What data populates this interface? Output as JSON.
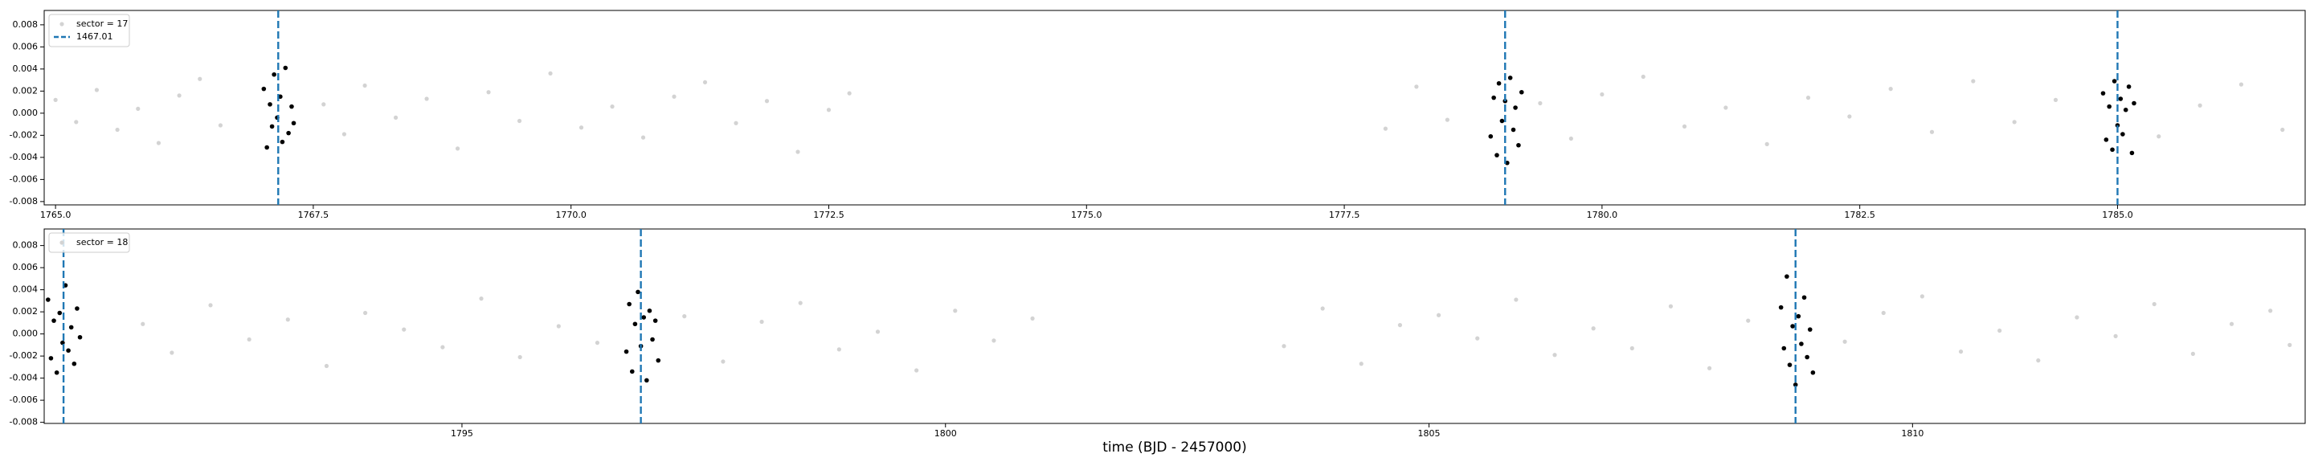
{
  "chart_data": [
    {
      "type": "scatter",
      "xlim": [
        1764.89,
        1786.82
      ],
      "ylim": [
        -0.0083,
        0.0093
      ],
      "xticks": [
        {
          "value": 1765,
          "label": "1765.0"
        },
        1767.5,
        {
          "value": 1770,
          "label": "1770.0"
        },
        1772.5,
        {
          "value": 1775,
          "label": "1775.0"
        },
        1777.5,
        {
          "value": 1780,
          "label": "1780.0"
        },
        1782.5,
        {
          "value": 1785,
          "label": "1785.0"
        }
      ],
      "yticks": [
        -0.008,
        -0.006,
        -0.004,
        -0.002,
        {
          "value": 0,
          "label": "0.000"
        },
        0.002,
        0.004,
        0.006,
        0.008
      ],
      "legend": "upper left",
      "series": [
        {
          "name": "sector = 17",
          "color": "#d3d3d3",
          "x": [
            1765.0,
            1765.2,
            1765.4,
            1765.6,
            1765.8,
            1766.0,
            1766.2,
            1766.4,
            1766.6,
            1767.6,
            1767.8,
            1768.0,
            1768.3,
            1768.6,
            1768.9,
            1769.2,
            1769.5,
            1769.8,
            1770.1,
            1770.4,
            1770.7,
            1771.0,
            1771.3,
            1771.6,
            1771.9,
            1772.2,
            1772.5,
            1772.7,
            1777.9,
            1778.2,
            1778.5,
            1779.4,
            1779.7,
            1780.0,
            1780.4,
            1780.8,
            1781.2,
            1781.6,
            1782.0,
            1782.4,
            1782.8,
            1783.2,
            1783.6,
            1784.0,
            1784.4,
            1785.4,
            1785.8,
            1786.2,
            1786.6
          ],
          "values": [
            0.0012,
            -0.0008,
            0.0021,
            -0.0015,
            0.0004,
            -0.0027,
            0.0016,
            0.0031,
            -0.0011,
            0.0008,
            -0.0019,
            0.0025,
            -0.0004,
            0.0013,
            -0.0032,
            0.0019,
            -0.0007,
            0.0036,
            -0.0013,
            0.0006,
            -0.0022,
            0.0015,
            0.0028,
            -0.0009,
            0.0011,
            -0.0035,
            0.0003,
            0.0018,
            -0.0014,
            0.0024,
            -0.0006,
            0.0009,
            -0.0023,
            0.0017,
            0.0033,
            -0.0012,
            0.0005,
            -0.0028,
            0.0014,
            -0.0003,
            0.0022,
            -0.0017,
            0.0029,
            -0.0008,
            0.0012,
            -0.0021,
            0.0007,
            0.0026,
            -0.0015
          ]
        },
        {
          "color": "#000000",
          "x": [
            1767.02,
            1767.05,
            1767.08,
            1767.1,
            1767.12,
            1767.15,
            1767.18,
            1767.2,
            1767.23,
            1767.26,
            1767.29,
            1767.31,
            1778.92,
            1778.95,
            1778.98,
            1779.0,
            1779.03,
            1779.06,
            1779.08,
            1779.11,
            1779.14,
            1779.16,
            1779.19,
            1779.22,
            1784.86,
            1784.89,
            1784.92,
            1784.95,
            1784.97,
            1785.0,
            1785.03,
            1785.05,
            1785.08,
            1785.11,
            1785.14,
            1785.16
          ],
          "values": [
            0.0022,
            -0.0031,
            0.0008,
            -0.0012,
            0.0035,
            -0.0004,
            0.0015,
            -0.0026,
            0.0041,
            -0.0018,
            0.0006,
            -0.0009,
            -0.0021,
            0.0014,
            -0.0038,
            0.0027,
            -0.0007,
            0.0011,
            -0.0045,
            0.0032,
            -0.0015,
            0.0005,
            -0.0029,
            0.0019,
            0.0018,
            -0.0024,
            0.0006,
            -0.0033,
            0.0029,
            -0.0011,
            0.0013,
            -0.0019,
            0.0003,
            0.0024,
            -0.0036,
            0.0009
          ]
        }
      ],
      "vlines": {
        "name": "1467.01",
        "color": "#1f77b4",
        "x": [
          1767.16,
          1779.06,
          1785.0
        ]
      }
    },
    {
      "type": "scatter",
      "xlabel": "time (BJD - 2457000)",
      "xlim": [
        1790.68,
        1814.06
      ],
      "ylim": [
        -0.0081,
        0.0095
      ],
      "xticks": [
        1795,
        1800,
        1805,
        1810
      ],
      "yticks": [
        -0.008,
        -0.006,
        -0.004,
        -0.002,
        {
          "value": 0,
          "label": "0.000"
        },
        0.002,
        0.004,
        0.006,
        0.008
      ],
      "legend": "upper left",
      "series": [
        {
          "name": "sector = 18",
          "color": "#d3d3d3",
          "x": [
            1791.7,
            1792.0,
            1792.4,
            1792.8,
            1793.2,
            1793.6,
            1794.0,
            1794.4,
            1794.8,
            1795.2,
            1795.6,
            1796.0,
            1796.4,
            1797.3,
            1797.7,
            1798.1,
            1798.5,
            1798.9,
            1799.3,
            1799.7,
            1800.1,
            1800.5,
            1800.9,
            1803.5,
            1803.9,
            1804.3,
            1804.7,
            1805.1,
            1805.5,
            1805.9,
            1806.3,
            1806.7,
            1807.1,
            1807.5,
            1807.9,
            1808.3,
            1809.3,
            1809.7,
            1810.1,
            1810.5,
            1810.9,
            1811.3,
            1811.7,
            1812.1,
            1812.5,
            1812.9,
            1813.3,
            1813.7,
            1813.9
          ],
          "values": [
            0.0009,
            -0.0017,
            0.0026,
            -0.0005,
            0.0013,
            -0.0029,
            0.0019,
            0.0004,
            -0.0012,
            0.0032,
            -0.0021,
            0.0007,
            -0.0008,
            0.0016,
            -0.0025,
            0.0011,
            0.0028,
            -0.0014,
            0.0002,
            -0.0033,
            0.0021,
            -0.0006,
            0.0014,
            -0.0011,
            0.0023,
            -0.0027,
            0.0008,
            0.0017,
            -0.0004,
            0.0031,
            -0.0019,
            0.0005,
            -0.0013,
            0.0025,
            -0.0031,
            0.0012,
            -0.0007,
            0.0019,
            0.0034,
            -0.0016,
            0.0003,
            -0.0024,
            0.0015,
            -0.0002,
            0.0027,
            -0.0018,
            0.0009,
            0.0021,
            -0.001
          ]
        },
        {
          "color": "#000000",
          "x": [
            1790.72,
            1790.75,
            1790.78,
            1790.81,
            1790.84,
            1790.87,
            1790.9,
            1790.93,
            1790.96,
            1790.99,
            1791.02,
            1791.05,
            1796.7,
            1796.73,
            1796.76,
            1796.79,
            1796.82,
            1796.85,
            1796.88,
            1796.91,
            1796.94,
            1796.97,
            1797.0,
            1797.03,
            1808.64,
            1808.67,
            1808.7,
            1808.73,
            1808.76,
            1808.79,
            1808.82,
            1808.85,
            1808.88,
            1808.91,
            1808.94,
            1808.97
          ],
          "values": [
            0.0031,
            -0.0022,
            0.0012,
            -0.0035,
            0.0019,
            -0.0008,
            0.0044,
            -0.0015,
            0.0006,
            -0.0027,
            0.0023,
            -0.0003,
            -0.0016,
            0.0027,
            -0.0034,
            0.0009,
            0.0038,
            -0.0011,
            0.0015,
            -0.0042,
            0.0021,
            -0.0005,
            0.0012,
            -0.0024,
            0.0024,
            -0.0013,
            0.0052,
            -0.0028,
            0.0007,
            -0.0046,
            0.0016,
            -0.0009,
            0.0033,
            -0.0021,
            0.0004,
            -0.0035
          ]
        }
      ],
      "vlines": {
        "color": "#1f77b4",
        "x": [
          1790.88,
          1796.85,
          1808.79
        ]
      }
    }
  ]
}
